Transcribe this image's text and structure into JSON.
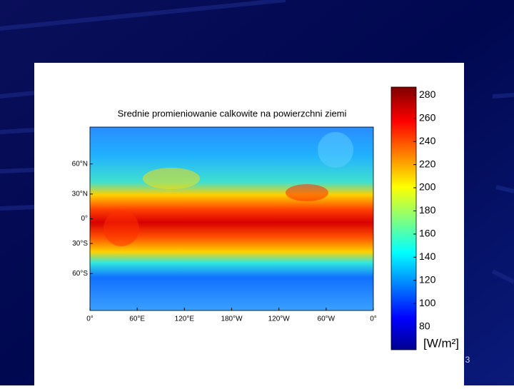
{
  "title": "Srednie promieniowanie calkowite na powierzchni ziemi",
  "map": {
    "lat_lim": [
      -84,
      84
    ],
    "lon_lim": [
      0,
      360
    ],
    "lat_ticks": [
      {
        "value": 60,
        "label": "60°N"
      },
      {
        "value": 30,
        "label": "30°N"
      },
      {
        "value": 0,
        "label": "0°"
      },
      {
        "value": -30,
        "label": "30°S"
      },
      {
        "value": -60,
        "label": "60°S"
      }
    ],
    "lon_ticks": [
      {
        "value": 0,
        "label": "0°"
      },
      {
        "value": 60,
        "label": "60°E"
      },
      {
        "value": 120,
        "label": "120°E"
      },
      {
        "value": 180,
        "label": "180°W"
      },
      {
        "value": 240,
        "label": "120°W"
      },
      {
        "value": 300,
        "label": "60°W"
      },
      {
        "value": 360,
        "label": "0°"
      }
    ]
  },
  "colorbar": {
    "lim": [
      60,
      287
    ],
    "ticks": [
      80,
      100,
      120,
      140,
      160,
      180,
      200,
      220,
      240,
      260,
      280
    ],
    "unit": "[W/m²]"
  },
  "slide_number": "3"
}
